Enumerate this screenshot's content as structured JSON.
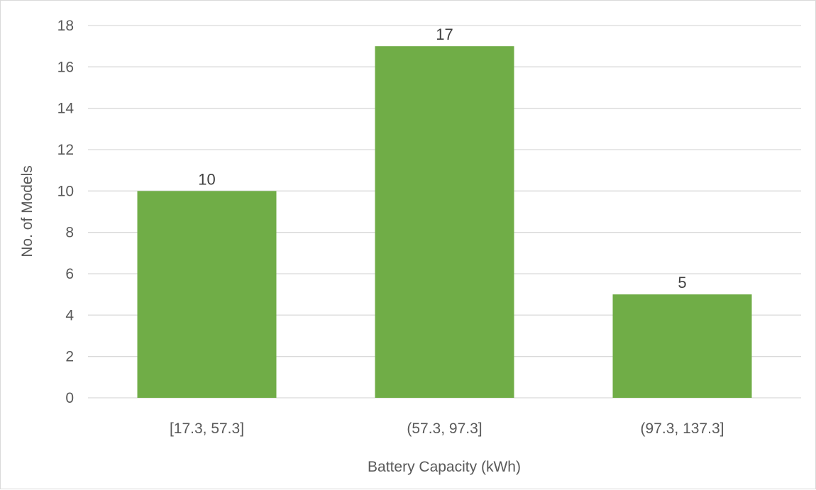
{
  "chart_data": {
    "type": "bar",
    "categories": [
      "[17.3, 57.3]",
      "(57.3, 97.3]",
      "(97.3, 137.3]"
    ],
    "values": [
      10,
      17,
      5
    ],
    "data_labels": [
      "10",
      "17",
      "5"
    ],
    "title": "",
    "xlabel": "Battery Capacity (kWh)",
    "ylabel": "No. of Models",
    "ylim": [
      0,
      18
    ],
    "yticks": [
      "0",
      "2",
      "4",
      "6",
      "8",
      "10",
      "12",
      "14",
      "16",
      "18"
    ],
    "grid": true,
    "legend": "none",
    "colors": {
      "bar": "#70ad47",
      "grid": "#d9d9d9",
      "text": "#595959"
    }
  }
}
